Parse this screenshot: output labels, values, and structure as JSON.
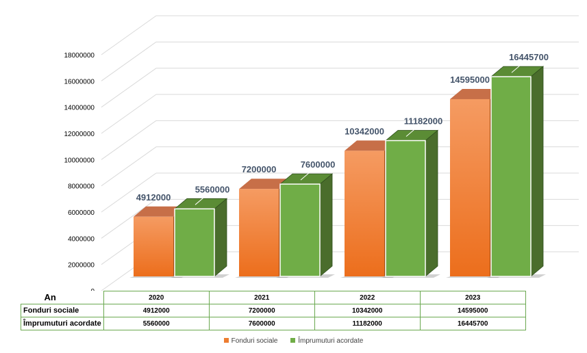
{
  "chart_data": {
    "type": "bar",
    "categories": [
      "2020",
      "2021",
      "2022",
      "2023"
    ],
    "series": [
      {
        "name": "Fonduri sociale",
        "values": [
          4912000,
          7200000,
          10342000,
          14595000
        ],
        "color": "#ed7d31"
      },
      {
        "name": "Împrumuturi acordate",
        "values": [
          5560000,
          7600000,
          11182000,
          16445700
        ],
        "color": "#70ad47"
      }
    ],
    "ylim": [
      0,
      18000000
    ],
    "yticks": [
      "0",
      "2000000",
      "4000000",
      "6000000",
      "8000000",
      "10000000",
      "12000000",
      "14000000",
      "16000000",
      "18000000"
    ],
    "grid": true,
    "legend": "bottom",
    "data_table": {
      "header_label": "An",
      "years": [
        "2020",
        "2021",
        "2022",
        "2023"
      ],
      "rows": [
        {
          "label": "Fonduri sociale",
          "values": [
            "4912000",
            "7200000",
            "10342000",
            "14595000"
          ]
        },
        {
          "label": "Împrumuturi acordate",
          "values": [
            "5560000",
            "7600000",
            "11182000",
            "16445700"
          ]
        }
      ]
    }
  }
}
